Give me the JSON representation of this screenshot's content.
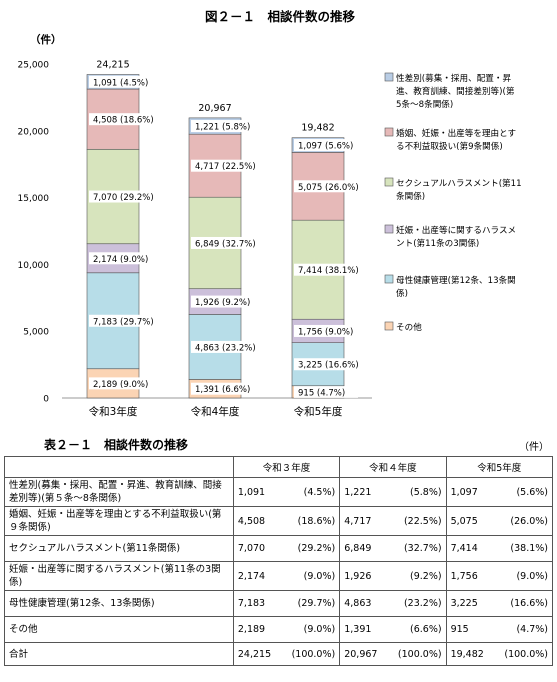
{
  "chart_data": {
    "type": "bar",
    "stacked": true,
    "title": "図２－１　相談件数の推移",
    "unit_label": "（件）",
    "categories": [
      "令和3年度",
      "令和4年度",
      "令和5年度"
    ],
    "totals": [
      "24,215",
      "20,967",
      "19,482"
    ],
    "ylim": [
      0,
      25000
    ],
    "yticks": [
      "0",
      "5,000",
      "10,000",
      "15,000",
      "20,000",
      "25,000"
    ],
    "ytick_values": [
      0,
      5000,
      10000,
      15000,
      20000,
      25000
    ],
    "grid": false,
    "legend_position": "right",
    "series": [
      {
        "name": "その他",
        "color": "#fbd4b4",
        "values": [
          2189,
          1391,
          915
        ],
        "labels": [
          "2,189 (9.0%)",
          "1,391 (6.6%)",
          "915 (4.7%)"
        ]
      },
      {
        "name": "母性健康管理(第12条、13条関係)",
        "color": "#b7dde8",
        "values": [
          7183,
          4863,
          3225
        ],
        "labels": [
          "7,183 (29.7%)",
          "4,863 (23.2%)",
          "3,225 (16.6%)"
        ]
      },
      {
        "name": "妊娠・出産等に関するハラスメント(第11条の3関係)",
        "color": "#ccc0da",
        "values": [
          2174,
          1926,
          1756
        ],
        "labels": [
          "2,174 (9.0%)",
          "1,926 (9.2%)",
          "1,756 (9.0%)"
        ]
      },
      {
        "name": "セクシュアルハラスメント(第11条関係)",
        "color": "#d7e4bd",
        "values": [
          7070,
          6849,
          7414
        ],
        "labels": [
          "7,070 (29.2%)",
          "6,849 (32.7%)",
          "7,414 (38.1%)"
        ]
      },
      {
        "name": "婚姻、妊娠・出産等を理由とする不利益取扱い(第9条関係)",
        "color": "#e6b9b8",
        "values": [
          4508,
          4717,
          5075
        ],
        "labels": [
          "4,508 (18.6%)",
          "4,717 (22.5%)",
          "5,075 (26.0%)"
        ]
      },
      {
        "name": "性差別(募集・採用、配置・昇進、教育訓練、間接差別等)(第5条～8条関係)",
        "color": "#b9cde5",
        "values": [
          1091,
          1221,
          1097
        ],
        "labels": [
          "1,091 (4.5%)",
          "1,221 (5.8%)",
          "1,097 (5.6%)"
        ]
      }
    ],
    "legend": [
      {
        "lines": [
          "性差別(募集・採用、配置・昇",
          "進、教育訓練、間接差別等)(第",
          "5条～8条関係)"
        ],
        "color": "#b9cde5"
      },
      {
        "lines": [
          "婚姻、妊娠・出産等を理由とす",
          "る不利益取扱い(第9条関係)"
        ],
        "color": "#e6b9b8"
      },
      {
        "lines": [
          "セクシュアルハラスメント(第11",
          "条関係)"
        ],
        "color": "#d7e4bd"
      },
      {
        "lines": [
          "妊娠・出産等に関するハラスメ",
          "ント(第11条の3関係)"
        ],
        "color": "#ccc0da"
      },
      {
        "lines": [
          "母性健康管理(第12条、13条関",
          "係)"
        ],
        "color": "#b7dde8"
      },
      {
        "lines": [
          "その他"
        ],
        "color": "#fbd4b4"
      }
    ]
  },
  "table": {
    "title": "表２－１　相談件数の推移",
    "unit": "（件）",
    "headers": [
      "令和３年度",
      "令和４年度",
      "令和5年度"
    ],
    "rows": [
      {
        "label": "性差別(募集・採用、配置・昇進、教育訓練、間接差別等)(第５条～8条関係)",
        "cells": [
          [
            "1,091",
            "(4.5%)"
          ],
          [
            "1,221",
            "(5.8%)"
          ],
          [
            "1,097",
            "(5.6%)"
          ]
        ]
      },
      {
        "label": "婚姻、妊娠・出産等を理由とする不利益取扱い(第９条関係)",
        "cells": [
          [
            "4,508",
            "(18.6%)"
          ],
          [
            "4,717",
            "(22.5%)"
          ],
          [
            "5,075",
            "(26.0%)"
          ]
        ]
      },
      {
        "label": "セクシュアルハラスメント(第11条関係)",
        "cells": [
          [
            "7,070",
            "(29.2%)"
          ],
          [
            "6,849",
            "(32.7%)"
          ],
          [
            "7,414",
            "(38.1%)"
          ]
        ]
      },
      {
        "label": "妊娠・出産等に関するハラスメント(第11条の3関係)",
        "cells": [
          [
            "2,174",
            "(9.0%)"
          ],
          [
            "1,926",
            "(9.2%)"
          ],
          [
            "1,756",
            "(9.0%)"
          ]
        ]
      },
      {
        "label": "母性健康管理(第12条、13条関係)",
        "cells": [
          [
            "7,183",
            "(29.7%)"
          ],
          [
            "4,863",
            "(23.2%)"
          ],
          [
            "3,225",
            "(16.6%)"
          ]
        ]
      },
      {
        "label": "その他",
        "cells": [
          [
            "2,189",
            "(9.0%)"
          ],
          [
            "1,391",
            "(6.6%)"
          ],
          [
            "915",
            "(4.7%)"
          ]
        ]
      },
      {
        "label": "合計",
        "cells": [
          [
            "24,215",
            "(100.0%)"
          ],
          [
            "20,967",
            "(100.0%)"
          ],
          [
            "19,482",
            "(100.0%)"
          ]
        ]
      }
    ]
  }
}
